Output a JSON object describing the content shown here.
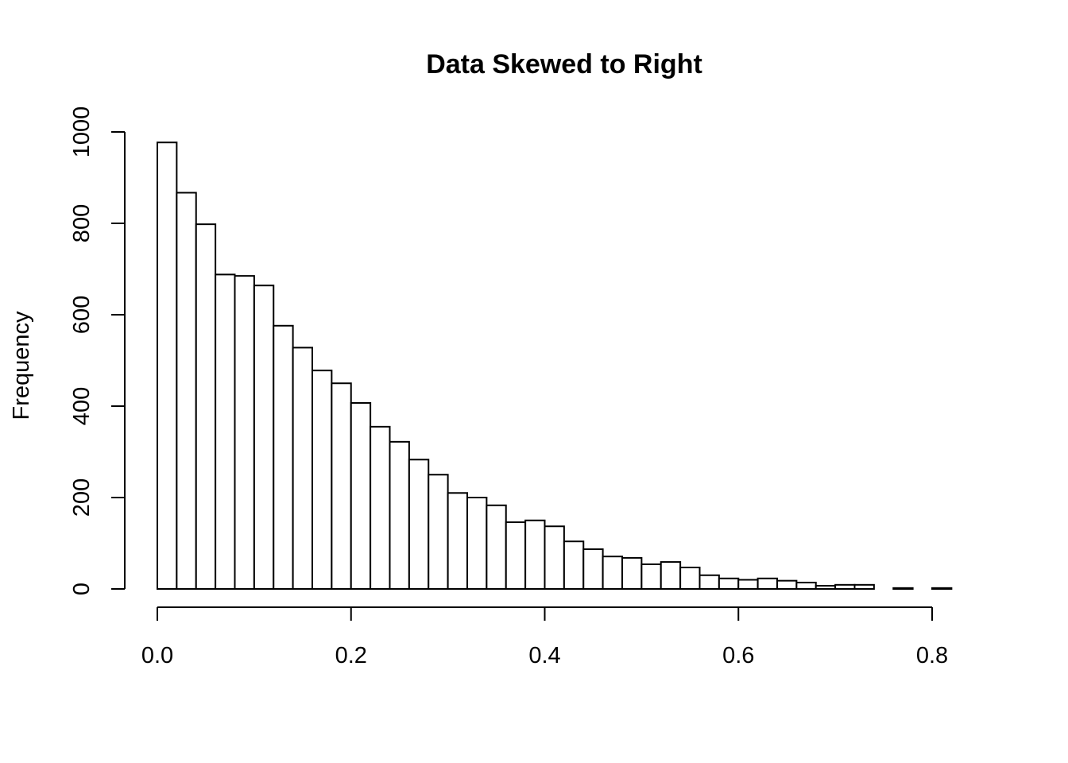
{
  "chart_data": {
    "type": "bar",
    "subtype": "histogram",
    "title": "Data Skewed to Right",
    "xlabel": "",
    "ylabel": "Frequency",
    "bin_width": 0.02,
    "bin_start": 0.0,
    "values": [
      977,
      867,
      798,
      688,
      685,
      664,
      576,
      528,
      478,
      450,
      407,
      355,
      322,
      283,
      250,
      210,
      200,
      183,
      146,
      150,
      137,
      104,
      87,
      71,
      68,
      54,
      59,
      47,
      30,
      23,
      20,
      23,
      18,
      14,
      7,
      9,
      9,
      0,
      2,
      0,
      2,
      0
    ],
    "xlim": [
      0.0,
      0.84
    ],
    "ylim": [
      0,
      1000
    ],
    "x_ticks": [
      "0.0",
      "0.2",
      "0.4",
      "0.6",
      "0.8"
    ],
    "y_ticks": [
      "0",
      "200",
      "400",
      "600",
      "800",
      "1000"
    ],
    "grid": false,
    "bar_fill": "#ffffff",
    "bar_stroke": "#000000"
  }
}
